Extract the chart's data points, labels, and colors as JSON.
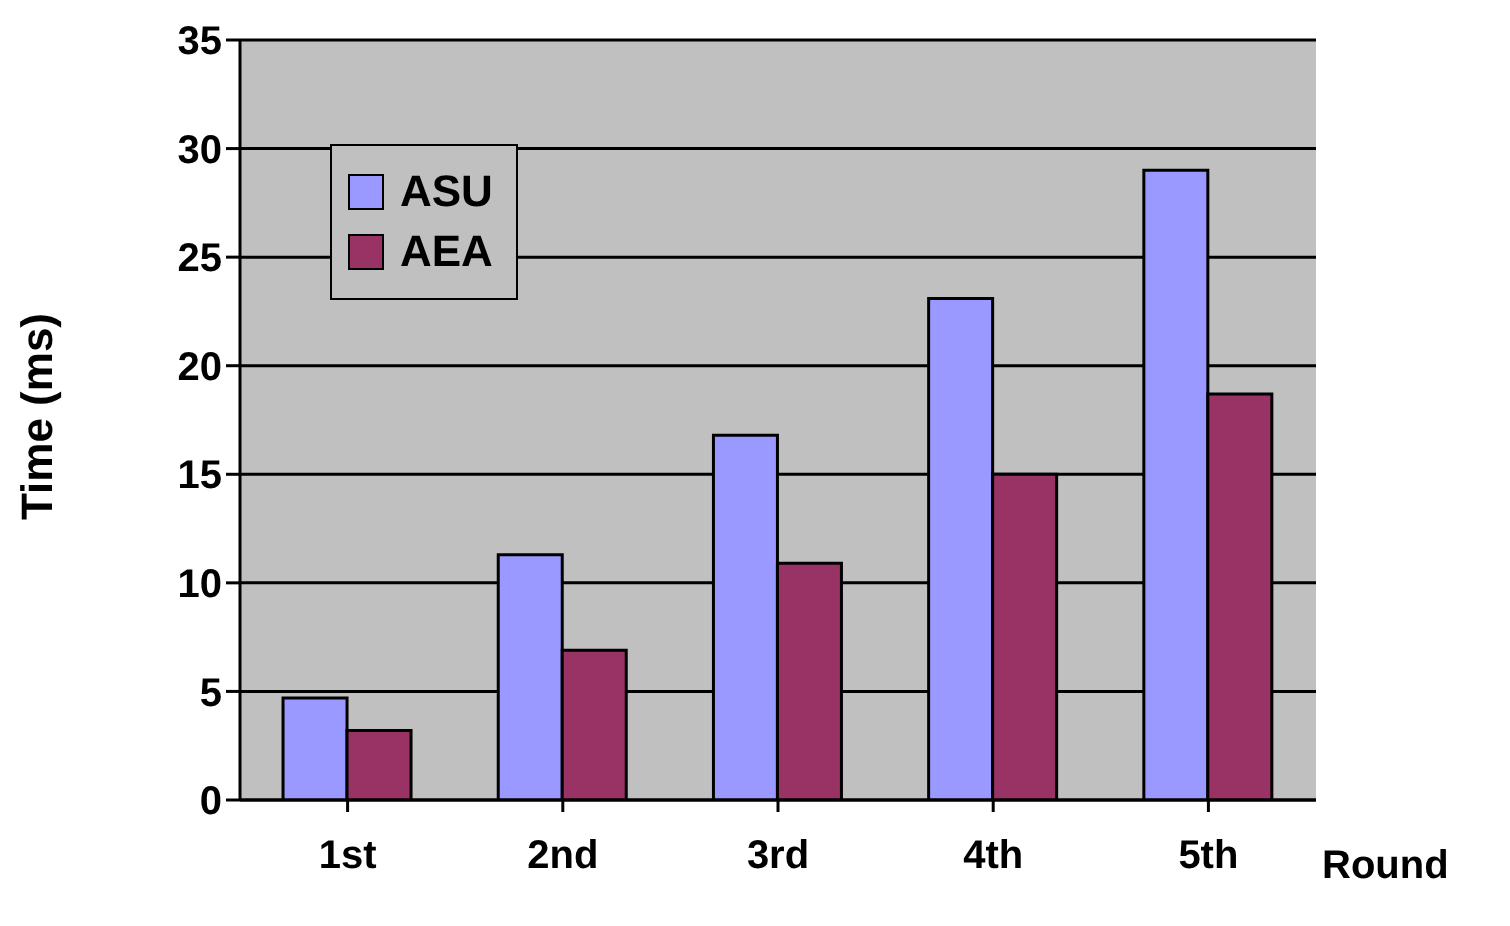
{
  "chart_data": {
    "type": "bar",
    "xlabel": "Round",
    "ylabel": "Time (ms)",
    "categories": [
      "1st",
      "2nd",
      "3rd",
      "4th",
      "5th"
    ],
    "series": [
      {
        "name": "ASU",
        "color": "#9999ff",
        "values": [
          4.7,
          11.3,
          16.8,
          23.1,
          29.0
        ]
      },
      {
        "name": "AEA",
        "color": "#993366",
        "values": [
          3.2,
          6.9,
          10.9,
          15.0,
          18.7
        ]
      }
    ],
    "ylim": [
      0,
      35
    ],
    "yticks": [
      0,
      5,
      10,
      15,
      20,
      25,
      30,
      35
    ],
    "grid": "y",
    "legend": "top left"
  }
}
